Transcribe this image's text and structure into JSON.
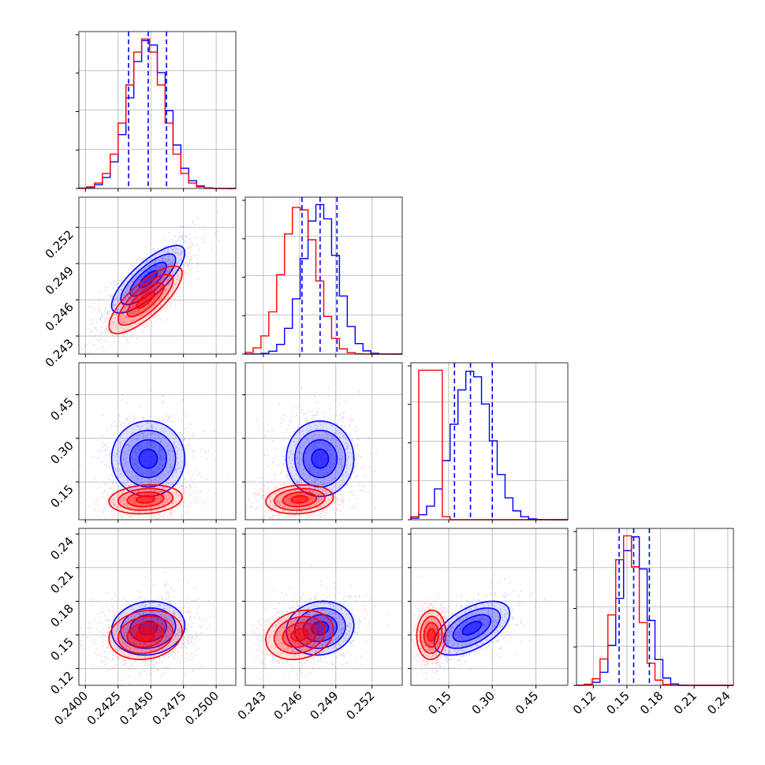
{
  "chart_data": {
    "type": "corner",
    "grid": true,
    "colors": {
      "series_a": "#0000ff",
      "series_b": "#ff0000",
      "grid": "#b0b0b0"
    },
    "params": [
      {
        "index": 0,
        "range": [
          0.2395,
          0.2515
        ],
        "ticks": [
          "0.2400",
          "0.2425",
          "0.2450",
          "0.2475",
          "0.2500"
        ],
        "tick_values": [
          0.24,
          0.2425,
          0.245,
          0.2475,
          0.25
        ]
      },
      {
        "index": 1,
        "range": [
          0.2415,
          0.2545
        ],
        "ticks": [
          "0.243",
          "0.246",
          "0.249",
          "0.252"
        ],
        "tick_values": [
          0.243,
          0.246,
          0.249,
          0.252
        ]
      },
      {
        "index": 2,
        "range": [
          0.02,
          0.56
        ],
        "ticks": [
          "0.15",
          "0.30",
          "0.45"
        ],
        "tick_values": [
          0.15,
          0.3,
          0.45
        ]
      },
      {
        "index": 3,
        "range": [
          0.105,
          0.245
        ],
        "ticks": [
          "0.12",
          "0.15",
          "0.18",
          "0.21",
          "0.24"
        ],
        "tick_values": [
          0.12,
          0.15,
          0.18,
          0.21,
          0.24
        ]
      }
    ],
    "series": [
      {
        "color": "blue",
        "mean": [
          0.2448,
          0.2477,
          0.23,
          0.156
        ],
        "std": [
          0.0014,
          0.0014,
          0.065,
          0.012
        ],
        "quantiles": [
          [
            0.2433,
            0.2448,
            0.2462
          ],
          [
            0.2462,
            0.2477,
            0.2491
          ],
          [
            0.17,
            0.225,
            0.3
          ],
          [
            0.143,
            0.156,
            0.17
          ]
        ],
        "corr": [
          [
            1,
            0.78,
            0.0,
            0.1
          ],
          [
            0.78,
            1,
            0.0,
            0.1
          ],
          [
            0.0,
            0.0,
            1,
            0.55
          ],
          [
            0.1,
            0.1,
            0.55,
            1
          ]
        ]
      },
      {
        "color": "red",
        "mean": [
          0.2446,
          0.246,
          0.09,
          0.15
        ],
        "std": [
          0.0014,
          0.0014,
          0.025,
          0.011
        ],
        "corr": [
          [
            1,
            0.78,
            0.15,
            0.15
          ],
          [
            0.78,
            1,
            0.15,
            0.2
          ],
          [
            0.15,
            0.15,
            1,
            0.05
          ],
          [
            0.15,
            0.2,
            0.05,
            1
          ]
        ]
      }
    ],
    "hist_bins": 20,
    "contour_levels_sigma": [
      0.5,
      1.0,
      1.5,
      2.0
    ]
  }
}
